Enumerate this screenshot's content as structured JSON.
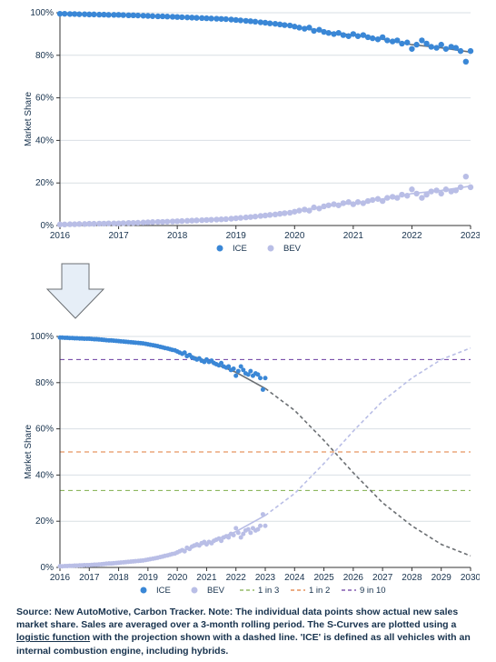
{
  "global": {
    "y_axis_label": "Market Share",
    "y_ticks": [
      0,
      20,
      40,
      60,
      80,
      100
    ],
    "y_tick_suffix": "%",
    "ylim": [
      0,
      100
    ],
    "axis_color": "#333333",
    "grid_color": "#d9dfe4",
    "background": "#ffffff",
    "axis_font_size": 10,
    "label_font_size": 10
  },
  "series_colors": {
    "ice_point": "#3a87d6",
    "ice_curve": "#6b6f73",
    "bev_point": "#b9bee6",
    "bev_curve": "#b9bee6",
    "ice_proj": "#6b6f73",
    "bev_proj": "#b9bee6",
    "one_in_three": "#7fae4a",
    "one_in_two": "#e07b3a",
    "nine_in_ten": "#6a3aa0"
  },
  "chart1": {
    "xlim": [
      2016,
      2023
    ],
    "x_ticks": [
      2016,
      2017,
      2018,
      2019,
      2020,
      2021,
      2022,
      2023
    ],
    "ice_points": [
      [
        2016.0,
        99.5
      ],
      [
        2016.08,
        99.5
      ],
      [
        2016.17,
        99.4
      ],
      [
        2016.25,
        99.4
      ],
      [
        2016.33,
        99.3
      ],
      [
        2016.42,
        99.3
      ],
      [
        2016.5,
        99.2
      ],
      [
        2016.58,
        99.2
      ],
      [
        2016.67,
        99.1
      ],
      [
        2016.75,
        99.1
      ],
      [
        2016.83,
        99.0
      ],
      [
        2016.92,
        99.0
      ],
      [
        2017.0,
        99.0
      ],
      [
        2017.08,
        98.9
      ],
      [
        2017.17,
        98.8
      ],
      [
        2017.25,
        98.8
      ],
      [
        2017.33,
        98.7
      ],
      [
        2017.42,
        98.6
      ],
      [
        2017.5,
        98.5
      ],
      [
        2017.58,
        98.4
      ],
      [
        2017.67,
        98.3
      ],
      [
        2017.75,
        98.3
      ],
      [
        2017.83,
        98.2
      ],
      [
        2017.92,
        98.1
      ],
      [
        2018.0,
        98.0
      ],
      [
        2018.08,
        97.9
      ],
      [
        2018.17,
        97.8
      ],
      [
        2018.25,
        97.7
      ],
      [
        2018.33,
        97.6
      ],
      [
        2018.42,
        97.5
      ],
      [
        2018.5,
        97.4
      ],
      [
        2018.58,
        97.3
      ],
      [
        2018.67,
        97.2
      ],
      [
        2018.75,
        97.1
      ],
      [
        2018.83,
        97.0
      ],
      [
        2018.92,
        96.8
      ],
      [
        2019.0,
        96.6
      ],
      [
        2019.08,
        96.4
      ],
      [
        2019.17,
        96.2
      ],
      [
        2019.25,
        96.0
      ],
      [
        2019.33,
        95.8
      ],
      [
        2019.42,
        95.5
      ],
      [
        2019.5,
        95.3
      ],
      [
        2019.58,
        95.0
      ],
      [
        2019.67,
        94.8
      ],
      [
        2019.75,
        94.5
      ],
      [
        2019.83,
        94.2
      ],
      [
        2019.92,
        94.0
      ],
      [
        2020.0,
        93.5
      ],
      [
        2020.08,
        93.0
      ],
      [
        2020.17,
        92.5
      ],
      [
        2020.25,
        93.0
      ],
      [
        2020.33,
        91.5
      ],
      [
        2020.42,
        92.0
      ],
      [
        2020.5,
        91.0
      ],
      [
        2020.58,
        90.5
      ],
      [
        2020.67,
        90.0
      ],
      [
        2020.75,
        90.5
      ],
      [
        2020.83,
        89.5
      ],
      [
        2020.92,
        89.0
      ],
      [
        2021.0,
        90.0
      ],
      [
        2021.08,
        89.0
      ],
      [
        2021.17,
        89.5
      ],
      [
        2021.25,
        88.5
      ],
      [
        2021.33,
        88.0
      ],
      [
        2021.42,
        87.5
      ],
      [
        2021.5,
        88.5
      ],
      [
        2021.58,
        87.0
      ],
      [
        2021.67,
        86.5
      ],
      [
        2021.75,
        87.0
      ],
      [
        2021.83,
        85.5
      ],
      [
        2021.92,
        86.0
      ],
      [
        2022.0,
        83.0
      ],
      [
        2022.08,
        85.0
      ],
      [
        2022.17,
        87.0
      ],
      [
        2022.25,
        85.5
      ],
      [
        2022.33,
        84.0
      ],
      [
        2022.42,
        83.5
      ],
      [
        2022.5,
        85.0
      ],
      [
        2022.58,
        83.0
      ],
      [
        2022.67,
        84.0
      ],
      [
        2022.75,
        83.5
      ],
      [
        2022.83,
        82.0
      ],
      [
        2022.92,
        77.0
      ],
      [
        2023.0,
        82.0
      ]
    ],
    "bev_points": [
      [
        2016.0,
        0.5
      ],
      [
        2016.08,
        0.5
      ],
      [
        2016.17,
        0.6
      ],
      [
        2016.25,
        0.6
      ],
      [
        2016.33,
        0.7
      ],
      [
        2016.42,
        0.7
      ],
      [
        2016.5,
        0.8
      ],
      [
        2016.58,
        0.8
      ],
      [
        2016.67,
        0.9
      ],
      [
        2016.75,
        0.9
      ],
      [
        2016.83,
        1.0
      ],
      [
        2016.92,
        1.0
      ],
      [
        2017.0,
        1.0
      ],
      [
        2017.08,
        1.1
      ],
      [
        2017.17,
        1.2
      ],
      [
        2017.25,
        1.2
      ],
      [
        2017.33,
        1.3
      ],
      [
        2017.42,
        1.4
      ],
      [
        2017.5,
        1.5
      ],
      [
        2017.58,
        1.6
      ],
      [
        2017.67,
        1.7
      ],
      [
        2017.75,
        1.7
      ],
      [
        2017.83,
        1.8
      ],
      [
        2017.92,
        1.9
      ],
      [
        2018.0,
        2.0
      ],
      [
        2018.08,
        2.1
      ],
      [
        2018.17,
        2.2
      ],
      [
        2018.25,
        2.3
      ],
      [
        2018.33,
        2.4
      ],
      [
        2018.42,
        2.5
      ],
      [
        2018.5,
        2.6
      ],
      [
        2018.58,
        2.7
      ],
      [
        2018.67,
        2.8
      ],
      [
        2018.75,
        2.9
      ],
      [
        2018.83,
        3.0
      ],
      [
        2018.92,
        3.2
      ],
      [
        2019.0,
        3.4
      ],
      [
        2019.08,
        3.6
      ],
      [
        2019.17,
        3.8
      ],
      [
        2019.25,
        4.0
      ],
      [
        2019.33,
        4.2
      ],
      [
        2019.42,
        4.5
      ],
      [
        2019.5,
        4.7
      ],
      [
        2019.58,
        5.0
      ],
      [
        2019.67,
        5.2
      ],
      [
        2019.75,
        5.5
      ],
      [
        2019.83,
        5.8
      ],
      [
        2019.92,
        6.0
      ],
      [
        2020.0,
        6.5
      ],
      [
        2020.08,
        7.0
      ],
      [
        2020.17,
        7.5
      ],
      [
        2020.25,
        7.0
      ],
      [
        2020.33,
        8.5
      ],
      [
        2020.42,
        8.0
      ],
      [
        2020.5,
        9.0
      ],
      [
        2020.58,
        9.5
      ],
      [
        2020.67,
        10.0
      ],
      [
        2020.75,
        9.5
      ],
      [
        2020.83,
        10.5
      ],
      [
        2020.92,
        11.0
      ],
      [
        2021.0,
        10.0
      ],
      [
        2021.08,
        11.0
      ],
      [
        2021.17,
        10.5
      ],
      [
        2021.25,
        11.5
      ],
      [
        2021.33,
        12.0
      ],
      [
        2021.42,
        12.5
      ],
      [
        2021.5,
        11.5
      ],
      [
        2021.58,
        13.0
      ],
      [
        2021.67,
        13.5
      ],
      [
        2021.75,
        13.0
      ],
      [
        2021.83,
        14.5
      ],
      [
        2021.92,
        14.0
      ],
      [
        2022.0,
        17.0
      ],
      [
        2022.08,
        15.0
      ],
      [
        2022.17,
        13.0
      ],
      [
        2022.25,
        14.5
      ],
      [
        2022.33,
        16.0
      ],
      [
        2022.42,
        16.5
      ],
      [
        2022.5,
        15.0
      ],
      [
        2022.58,
        17.0
      ],
      [
        2022.67,
        16.0
      ],
      [
        2022.75,
        16.5
      ],
      [
        2022.83,
        18.0
      ],
      [
        2022.92,
        23.0
      ],
      [
        2023.0,
        18.0
      ]
    ],
    "ice_curve": [
      [
        2016,
        99.5
      ],
      [
        2016.5,
        99.2
      ],
      [
        2017,
        98.9
      ],
      [
        2017.5,
        98.5
      ],
      [
        2018,
        98.0
      ],
      [
        2018.5,
        97.4
      ],
      [
        2019,
        96.6
      ],
      [
        2019.5,
        95.3
      ],
      [
        2020,
        93.5
      ],
      [
        2020.5,
        91.0
      ],
      [
        2021,
        89.5
      ],
      [
        2021.5,
        87.5
      ],
      [
        2022,
        85.0
      ],
      [
        2022.5,
        83.5
      ],
      [
        2023,
        81.5
      ]
    ],
    "bev_curve": [
      [
        2016,
        0.5
      ],
      [
        2016.5,
        0.8
      ],
      [
        2017,
        1.1
      ],
      [
        2017.5,
        1.5
      ],
      [
        2018,
        2.0
      ],
      [
        2018.5,
        2.6
      ],
      [
        2019,
        3.4
      ],
      [
        2019.5,
        4.7
      ],
      [
        2020,
        6.5
      ],
      [
        2020.5,
        9.0
      ],
      [
        2021,
        10.5
      ],
      [
        2021.5,
        12.5
      ],
      [
        2022,
        15.0
      ],
      [
        2022.5,
        16.5
      ],
      [
        2023,
        18.5
      ]
    ],
    "legend": [
      {
        "label": "ICE",
        "kind": "dot",
        "color_key": "ice_point"
      },
      {
        "label": "BEV",
        "kind": "dot",
        "color_key": "bev_point"
      }
    ]
  },
  "chart2": {
    "xlim": [
      2016,
      2030
    ],
    "x_ticks": [
      2016,
      2017,
      2018,
      2019,
      2020,
      2021,
      2022,
      2023,
      2024,
      2025,
      2026,
      2027,
      2028,
      2029,
      2030
    ],
    "thresholds": {
      "one_in_three": 33.3,
      "one_in_two": 50,
      "nine_in_ten": 90
    },
    "ice_proj": [
      [
        2016,
        99.5
      ],
      [
        2017,
        98.9
      ],
      [
        2018,
        98.0
      ],
      [
        2019,
        96.6
      ],
      [
        2020,
        93.5
      ],
      [
        2021,
        89.5
      ],
      [
        2022,
        84.5
      ],
      [
        2023,
        77.5
      ],
      [
        2024,
        68.0
      ],
      [
        2025,
        55.0
      ],
      [
        2026,
        41.0
      ],
      [
        2027,
        28.0
      ],
      [
        2028,
        18.0
      ],
      [
        2029,
        10.0
      ],
      [
        2030,
        5.0
      ]
    ],
    "bev_proj": [
      [
        2016,
        0.5
      ],
      [
        2017,
        1.1
      ],
      [
        2018,
        2.0
      ],
      [
        2019,
        3.4
      ],
      [
        2020,
        6.5
      ],
      [
        2021,
        10.5
      ],
      [
        2022,
        15.5
      ],
      [
        2023,
        22.5
      ],
      [
        2024,
        32.0
      ],
      [
        2025,
        45.0
      ],
      [
        2026,
        59.0
      ],
      [
        2027,
        72.0
      ],
      [
        2028,
        82.0
      ],
      [
        2029,
        90.0
      ],
      [
        2030,
        95.0
      ]
    ],
    "legend": [
      {
        "label": "ICE",
        "kind": "dot",
        "color_key": "ice_point"
      },
      {
        "label": "BEV",
        "kind": "dot",
        "color_key": "bev_point"
      },
      {
        "label": "1 in 3",
        "kind": "dash",
        "color_key": "one_in_three"
      },
      {
        "label": "1 in 2",
        "kind": "dash",
        "color_key": "one_in_two"
      },
      {
        "label": "9 in 10",
        "kind": "dash",
        "color_key": "nine_in_ten"
      }
    ]
  },
  "arrow": {
    "fill": "#e6eef7",
    "stroke": "#6b6f73"
  },
  "caption": {
    "prefix": "Source: New AutoMotive, Carbon Tracker. Note: The individual data points show actual new sales market share. Sales are averaged over a 3-month rolling period. The S-Curves are plotted using a ",
    "link_text": "logistic function",
    "suffix": " with the projection shown with a dashed line. 'ICE' is defined as all vehicles with an internal combustion engine, including hybrids."
  }
}
